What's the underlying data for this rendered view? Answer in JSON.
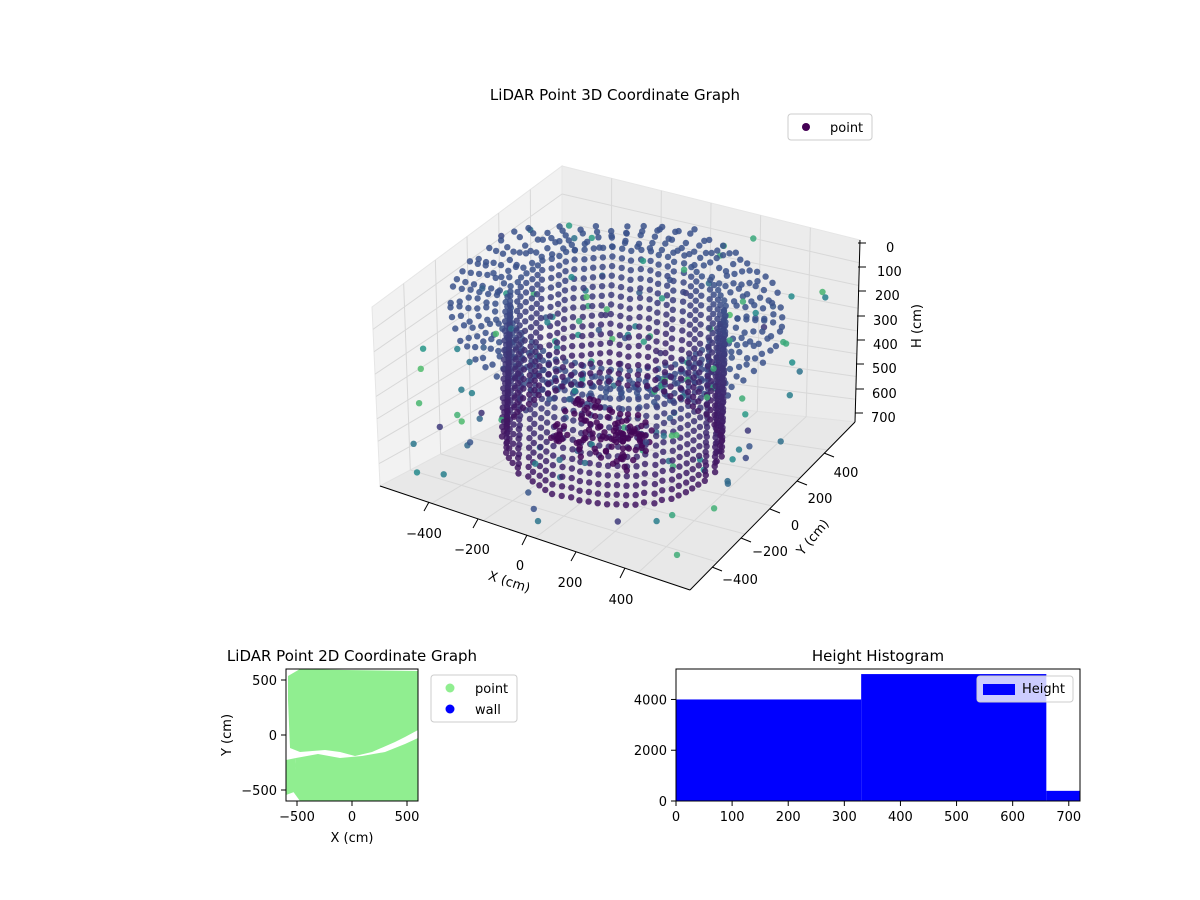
{
  "chart_data": [
    {
      "type": "scatter3d",
      "title": "LiDAR Point 3D Coordinate Graph",
      "xlabel": "X (cm)",
      "ylabel": "Y (cm)",
      "zlabel": "H (cm)",
      "x_ticks": [
        "−400",
        "−200",
        "0",
        "200",
        "400"
      ],
      "y_ticks": [
        "−400",
        "−200",
        "0",
        "200",
        "400"
      ],
      "z_ticks": [
        "0",
        "100",
        "200",
        "300",
        "400",
        "500",
        "600",
        "700"
      ],
      "xlim": [
        -550,
        550
      ],
      "ylim": [
        -550,
        550
      ],
      "zlim": [
        0,
        720
      ],
      "z_inverted": true,
      "colormap": "viridis",
      "legend": [
        {
          "name": "point",
          "color": "#440154"
        }
      ],
      "legend_loc": "upper-right",
      "grid": true
    },
    {
      "type": "scatter",
      "title": "LiDAR Point 2D Coordinate Graph",
      "xlabel": "X (cm)",
      "ylabel": "Y (cm)",
      "x_ticks": [
        "−500",
        "0",
        "500"
      ],
      "y_ticks": [
        "−500",
        "0",
        "500"
      ],
      "xlim": [
        -600,
        600
      ],
      "ylim": [
        -600,
        600
      ],
      "series": [
        {
          "name": "point",
          "color": "#90ee90"
        },
        {
          "name": "wall",
          "color": "#0000ff"
        }
      ],
      "legend_loc": "outside-upper-right"
    },
    {
      "type": "bar",
      "title": "Height Histogram",
      "x_ticks": [
        "0",
        "100",
        "200",
        "300",
        "400",
        "500",
        "600",
        "700"
      ],
      "y_ticks": [
        "0",
        "2000",
        "4000"
      ],
      "xlim": [
        0,
        720
      ],
      "ylim": [
        0,
        5200
      ],
      "bins": [
        {
          "x0": 0,
          "x1": 330,
          "value": 4000
        },
        {
          "x0": 330,
          "x1": 660,
          "value": 5000
        },
        {
          "x0": 660,
          "x1": 720,
          "value": 400
        }
      ],
      "color": "#0000ff",
      "series": [
        {
          "name": "Height",
          "color": "#0000ff"
        }
      ],
      "legend_loc": "upper-right"
    }
  ]
}
